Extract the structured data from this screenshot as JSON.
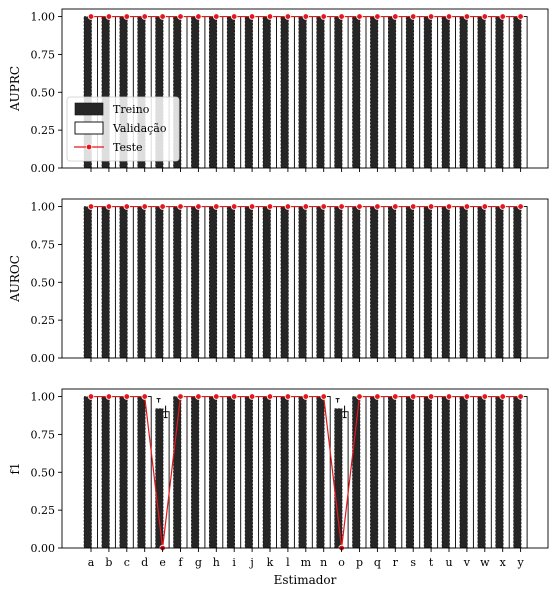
{
  "chart_data": {
    "type": "bar",
    "categories": [
      "a",
      "b",
      "c",
      "d",
      "e",
      "f",
      "g",
      "h",
      "i",
      "j",
      "k",
      "l",
      "m",
      "n",
      "o",
      "p",
      "q",
      "r",
      "s",
      "t",
      "u",
      "v",
      "w",
      "x",
      "y"
    ],
    "xlabel": "Estimador",
    "legend": {
      "placement": "lower-left of top panel",
      "entries": [
        {
          "label": "Treino",
          "style": "filled-bar"
        },
        {
          "label": "Validação",
          "style": "outline-bar"
        },
        {
          "label": "Teste",
          "style": "line-marker"
        }
      ]
    },
    "colors": {
      "treino": "#262626",
      "validacao": "#ffffff",
      "teste": "#e8161b"
    },
    "panels": [
      {
        "ylabel": "AUPRC",
        "ylim": [
          0,
          1.05
        ],
        "yticks": [
          "0.00",
          "0.25",
          "0.50",
          "0.75",
          "1.00"
        ],
        "series": [
          {
            "name": "Treino",
            "values": [
              1,
              1,
              1,
              1,
              1,
              1,
              1,
              1,
              1,
              1,
              1,
              1,
              1,
              1,
              1,
              1,
              1,
              1,
              1,
              1,
              1,
              1,
              1,
              1,
              1
            ]
          },
          {
            "name": "Validação",
            "values": [
              1,
              1,
              1,
              1,
              1,
              1,
              1,
              1,
              1,
              1,
              1,
              1,
              1,
              1,
              1,
              1,
              1,
              1,
              1,
              1,
              1,
              1,
              1,
              1,
              1
            ]
          },
          {
            "name": "Teste",
            "values": [
              1,
              1,
              1,
              1,
              1,
              1,
              1,
              1,
              1,
              1,
              1,
              1,
              1,
              1,
              1,
              1,
              1,
              1,
              1,
              1,
              1,
              1,
              1,
              1,
              1
            ]
          }
        ]
      },
      {
        "ylabel": "AUROC",
        "ylim": [
          0,
          1.05
        ],
        "yticks": [
          "0.00",
          "0.25",
          "0.50",
          "0.75",
          "1.00"
        ],
        "series": [
          {
            "name": "Treino",
            "values": [
              1,
              1,
              1,
              1,
              1,
              1,
              1,
              1,
              1,
              1,
              1,
              1,
              1,
              1,
              1,
              1,
              1,
              1,
              1,
              1,
              1,
              1,
              1,
              1,
              1
            ]
          },
          {
            "name": "Validação",
            "values": [
              1,
              1,
              1,
              1,
              1,
              1,
              1,
              1,
              1,
              1,
              1,
              1,
              1,
              1,
              1,
              1,
              1,
              1,
              1,
              1,
              1,
              1,
              1,
              1,
              1
            ]
          },
          {
            "name": "Teste",
            "values": [
              1,
              1,
              1,
              1,
              1,
              1,
              1,
              1,
              1,
              1,
              1,
              1,
              1,
              1,
              1,
              1,
              1,
              1,
              1,
              1,
              1,
              1,
              1,
              1,
              1
            ]
          }
        ]
      },
      {
        "ylabel": "f1",
        "ylim": [
          0,
          1.05
        ],
        "yticks": [
          "0.00",
          "0.25",
          "0.50",
          "0.75",
          "1.00"
        ],
        "series": [
          {
            "name": "Treino",
            "values": [
              1,
              1,
              1,
              1,
              0.92,
              1,
              1,
              1,
              1,
              1,
              1,
              1,
              1,
              1,
              0.92,
              1,
              1,
              1,
              1,
              1,
              1,
              1,
              1,
              1,
              1
            ]
          },
          {
            "name": "Validação",
            "values": [
              1,
              1,
              1,
              1,
              0.9,
              1,
              1,
              1,
              1,
              1,
              1,
              1,
              1,
              1,
              0.9,
              1,
              1,
              1,
              1,
              1,
              1,
              1,
              1,
              1,
              1
            ]
          },
          {
            "name": "Teste",
            "values": [
              1,
              1,
              1,
              1,
              0,
              1,
              1,
              1,
              1,
              1,
              1,
              1,
              1,
              1,
              0,
              1,
              1,
              1,
              1,
              1,
              1,
              1,
              1,
              1,
              1
            ]
          }
        ]
      }
    ]
  }
}
